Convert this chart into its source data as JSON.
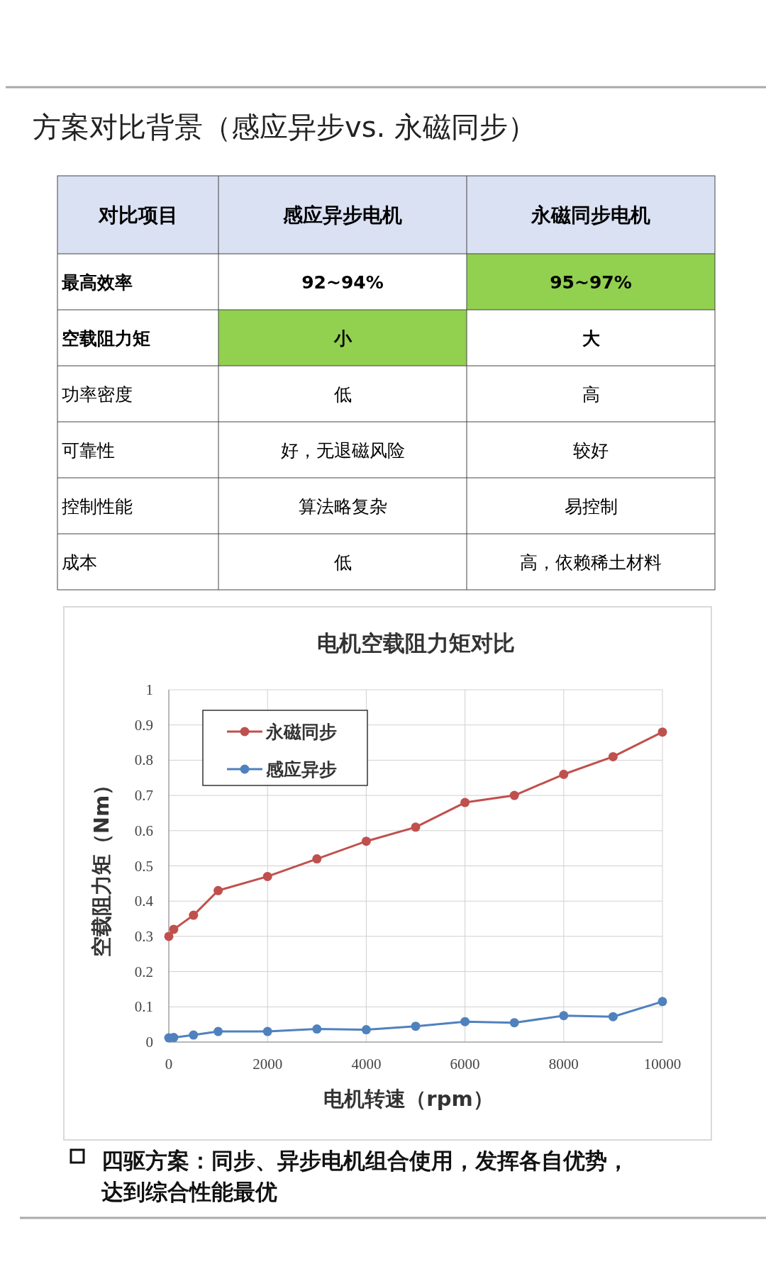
{
  "chart_data": [
    {
      "type": "other",
      "title": "方案对比背景（感应异步vs. 永磁同步）",
      "categories": [
        "对比项目",
        "感应异步电机",
        "永磁同步电机"
      ],
      "y_categories": [
        "最高效率",
        "空载阻力矩",
        "功率密度",
        "可靠性",
        "控制性能",
        "成本"
      ],
      "cell_labels": [
        [
          "92~94%",
          "95~97%"
        ],
        [
          "小",
          "大"
        ],
        [
          "低",
          "高"
        ],
        [
          "好，无退磁风险",
          "较好"
        ],
        [
          "算法略复杂",
          "易控制"
        ],
        [
          "低",
          "高，依赖稀土材料"
        ]
      ],
      "colors": [
        [
          null,
          "#92d050"
        ],
        [
          "#92d050",
          null
        ],
        [
          null,
          null
        ],
        [
          null,
          null
        ],
        [
          null,
          null
        ],
        [
          null,
          null
        ]
      ]
    },
    {
      "type": "line",
      "title": "电机空载阻力矩对比",
      "xlabel": "电机转速（rpm）",
      "ylabel": "空载阻力矩（Nm）",
      "x": [
        0,
        100,
        500,
        1000,
        2000,
        3000,
        4000,
        5000,
        6000,
        7000,
        8000,
        9000,
        10000
      ],
      "series": [
        {
          "name": "永磁同步",
          "color": "#c0504d",
          "values": [
            0.3,
            0.32,
            0.36,
            0.43,
            0.47,
            0.52,
            0.57,
            0.61,
            0.68,
            0.7,
            0.76,
            0.81,
            0.88
          ]
        },
        {
          "name": "感应异步",
          "color": "#4f81bd",
          "values": [
            0.012,
            0.013,
            0.02,
            0.03,
            0.03,
            0.037,
            0.035,
            0.045,
            0.058,
            0.055,
            0.075,
            0.072,
            0.115
          ]
        }
      ],
      "xlim": [
        0,
        10000
      ],
      "xticks": [
        0,
        2000,
        4000,
        6000,
        8000,
        10000
      ],
      "ylim": [
        0,
        1
      ],
      "yticks": [
        0,
        0.1,
        0.2,
        0.3,
        0.4,
        0.5,
        0.6,
        0.7,
        0.8,
        0.9,
        1
      ],
      "grid": true,
      "legend": "top left",
      "marker": "circle",
      "line_style": "solid",
      "annotations": [
        "四驱方案：同步、异步电机组合使用，发挥各自优势，达到综合性能最优"
      ]
    }
  ]
}
